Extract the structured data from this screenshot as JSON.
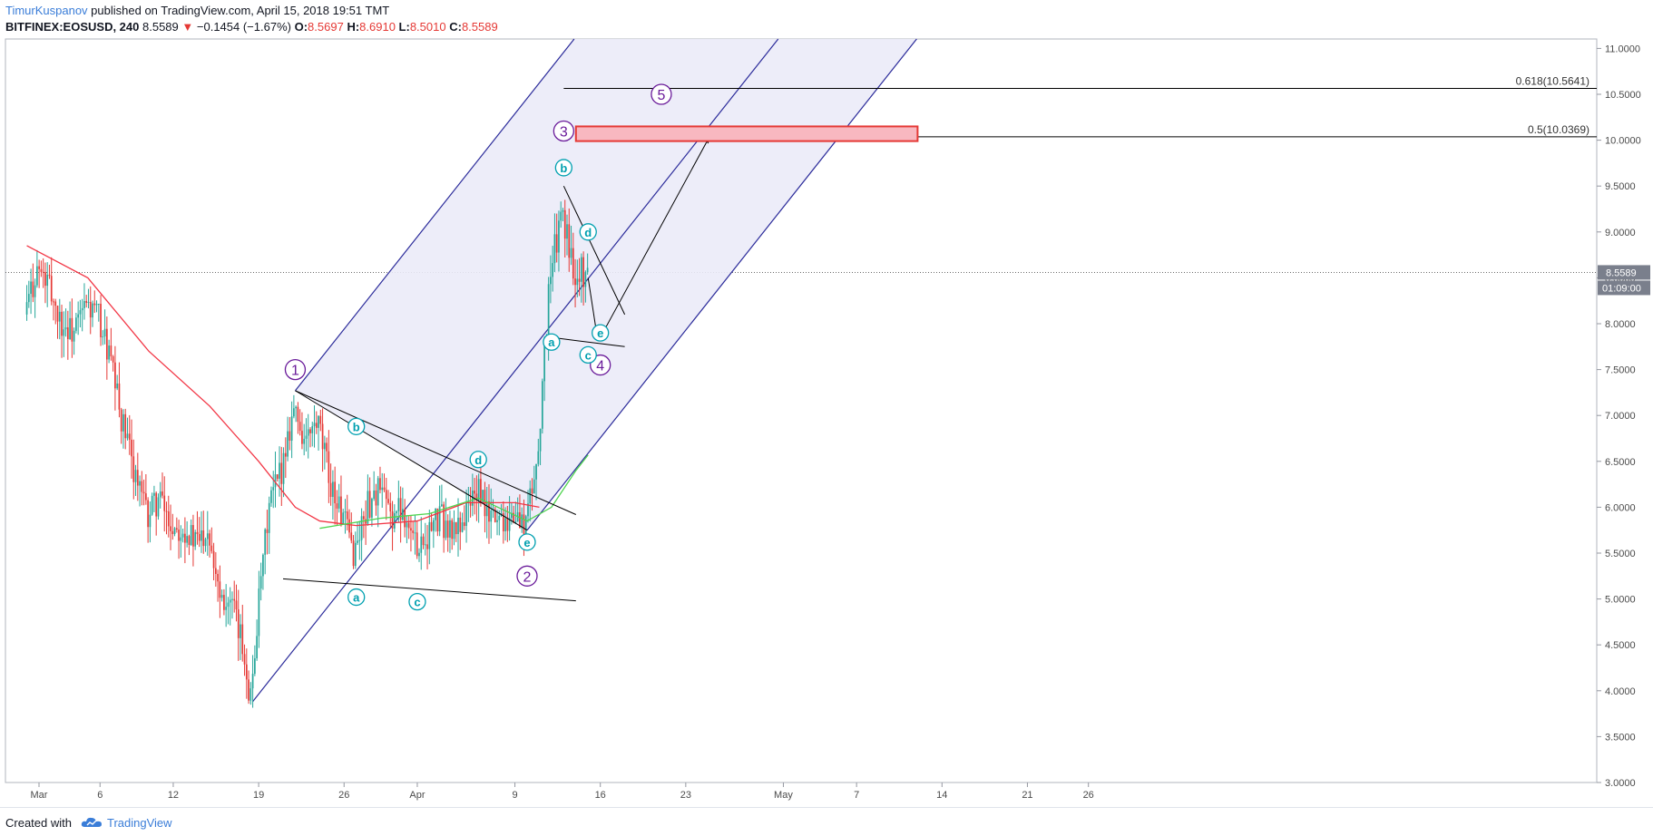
{
  "header": {
    "author": "TimurKuspanov",
    "published_text": " published on TradingView.com, April 15, 2018 19:51 TMT",
    "symbol": "BITFINEX:EOSUSD, 240",
    "last": "8.5589",
    "change": "−0.1454 (−1.67%)",
    "open_label": "O:",
    "open": "8.5697",
    "high_label": "H:",
    "high": "8.6910",
    "low_label": "L:",
    "low": "8.5010",
    "close_label": "C:",
    "close": "8.5589"
  },
  "footer": {
    "created_with": "Created with",
    "brand": "TradingView"
  },
  "price_tag": {
    "price": "8.5589",
    "countdown": "01:09:00"
  },
  "fib_levels": [
    {
      "label": "0.618(10.5641)",
      "value": 10.5641
    },
    {
      "label": "0.5(10.0369)",
      "value": 10.0369
    }
  ],
  "colors": {
    "up": "#26a69a",
    "down": "#e53935",
    "ma_red": "#f23645",
    "ma_green": "#4fd44f",
    "channel": "#2a2a9a",
    "channel_fill": "#ebebf8",
    "wave_purple": "#6a1b9a",
    "wave_teal": "#00a0b0",
    "target_box": "#f8b8c0"
  },
  "chart_data": {
    "type": "candlestick",
    "timeframe": "240",
    "ylim": [
      3.0,
      11.0
    ],
    "y_ticks": [
      "3.0000",
      "3.5000",
      "4.0000",
      "4.5000",
      "5.0000",
      "5.5000",
      "6.0000",
      "6.5000",
      "7.0000",
      "7.5000",
      "8.0000",
      "8.5000",
      "9.0000",
      "9.5000",
      "10.0000",
      "10.5000",
      "11.0000"
    ],
    "x_ticks": [
      {
        "label": "Mar",
        "date": "2018-03-01"
      },
      {
        "label": "6",
        "date": "2018-03-06"
      },
      {
        "label": "12",
        "date": "2018-03-12"
      },
      {
        "label": "19",
        "date": "2018-03-19"
      },
      {
        "label": "26",
        "date": "2018-03-26"
      },
      {
        "label": "Apr",
        "date": "2018-04-01"
      },
      {
        "label": "9",
        "date": "2018-04-09"
      },
      {
        "label": "16",
        "date": "2018-04-16"
      },
      {
        "label": "23",
        "date": "2018-04-23"
      },
      {
        "label": "May",
        "date": "2018-05-01"
      },
      {
        "label": "7",
        "date": "2018-05-07"
      },
      {
        "label": "14",
        "date": "2018-05-14"
      },
      {
        "label": "21",
        "date": "2018-05-21"
      },
      {
        "label": "26",
        "date": "2018-05-26"
      }
    ],
    "price_path": [
      {
        "x": "2018-02-28",
        "y": 8.1
      },
      {
        "x": "2018-03-01",
        "y": 8.6
      },
      {
        "x": "2018-03-02",
        "y": 8.4
      },
      {
        "x": "2018-03-03",
        "y": 8.0
      },
      {
        "x": "2018-03-04",
        "y": 7.9
      },
      {
        "x": "2018-03-05",
        "y": 8.2
      },
      {
        "x": "2018-03-06",
        "y": 8.1
      },
      {
        "x": "2018-03-07",
        "y": 7.6
      },
      {
        "x": "2018-03-08",
        "y": 6.9
      },
      {
        "x": "2018-03-09",
        "y": 6.4
      },
      {
        "x": "2018-03-10",
        "y": 5.9
      },
      {
        "x": "2018-03-11",
        "y": 6.1
      },
      {
        "x": "2018-03-12",
        "y": 5.8
      },
      {
        "x": "2018-03-13",
        "y": 5.8
      },
      {
        "x": "2018-03-14",
        "y": 5.6
      },
      {
        "x": "2018-03-15",
        "y": 5.8
      },
      {
        "x": "2018-03-16",
        "y": 5.1
      },
      {
        "x": "2018-03-17",
        "y": 4.9
      },
      {
        "x": "2018-03-18",
        "y": 4.4
      },
      {
        "x": "2018-03-18T12:00",
        "y": 3.9
      },
      {
        "x": "2018-03-19",
        "y": 4.7
      },
      {
        "x": "2018-03-20",
        "y": 6.0
      },
      {
        "x": "2018-03-21",
        "y": 6.4
      },
      {
        "x": "2018-03-22",
        "y": 7.1
      },
      {
        "x": "2018-03-23",
        "y": 6.7
      },
      {
        "x": "2018-03-24",
        "y": 6.9
      },
      {
        "x": "2018-03-25",
        "y": 6.3
      },
      {
        "x": "2018-03-26",
        "y": 5.9
      },
      {
        "x": "2018-03-27",
        "y": 5.5
      },
      {
        "x": "2018-03-28",
        "y": 6.0
      },
      {
        "x": "2018-03-29",
        "y": 6.2
      },
      {
        "x": "2018-03-30",
        "y": 5.9
      },
      {
        "x": "2018-03-31",
        "y": 6.0
      },
      {
        "x": "2018-04-01",
        "y": 5.6
      },
      {
        "x": "2018-04-02",
        "y": 5.7
      },
      {
        "x": "2018-04-03",
        "y": 5.9
      },
      {
        "x": "2018-04-04",
        "y": 5.7
      },
      {
        "x": "2018-04-05",
        "y": 5.9
      },
      {
        "x": "2018-04-06",
        "y": 6.2
      },
      {
        "x": "2018-04-07",
        "y": 5.9
      },
      {
        "x": "2018-04-08",
        "y": 5.9
      },
      {
        "x": "2018-04-09",
        "y": 5.9
      },
      {
        "x": "2018-04-10",
        "y": 5.8
      },
      {
        "x": "2018-04-11",
        "y": 6.5
      },
      {
        "x": "2018-04-12",
        "y": 8.5
      },
      {
        "x": "2018-04-13",
        "y": 9.2
      },
      {
        "x": "2018-04-14",
        "y": 8.6
      },
      {
        "x": "2018-04-15",
        "y": 8.5589
      }
    ],
    "ma_red": [
      {
        "x": "2018-02-28",
        "y": 8.85
      },
      {
        "x": "2018-03-05",
        "y": 8.5
      },
      {
        "x": "2018-03-10",
        "y": 7.7
      },
      {
        "x": "2018-03-15",
        "y": 7.1
      },
      {
        "x": "2018-03-19",
        "y": 6.5
      },
      {
        "x": "2018-03-22",
        "y": 6.0
      },
      {
        "x": "2018-03-24",
        "y": 5.85
      },
      {
        "x": "2018-03-27",
        "y": 5.8
      },
      {
        "x": "2018-04-01",
        "y": 5.85
      },
      {
        "x": "2018-04-05",
        "y": 6.05
      },
      {
        "x": "2018-04-09",
        "y": 6.05
      },
      {
        "x": "2018-04-11",
        "y": 6.0
      }
    ],
    "ma_green": [
      {
        "x": "2018-03-24",
        "y": 5.77
      },
      {
        "x": "2018-03-29",
        "y": 5.88
      },
      {
        "x": "2018-04-02",
        "y": 5.93
      },
      {
        "x": "2018-04-06",
        "y": 6.1
      },
      {
        "x": "2018-04-10",
        "y": 5.85
      },
      {
        "x": "2018-04-12",
        "y": 6.0
      },
      {
        "x": "2018-04-14",
        "y": 6.4
      },
      {
        "x": "2018-04-15",
        "y": 6.57
      }
    ],
    "wave_labels": [
      {
        "text": "1",
        "x": "2018-03-22",
        "y": 7.5,
        "style": "primary"
      },
      {
        "text": "2",
        "x": "2018-04-10",
        "y": 5.25,
        "style": "primary"
      },
      {
        "text": "3",
        "x": "2018-04-13",
        "y": 10.1,
        "style": "primary"
      },
      {
        "text": "4",
        "x": "2018-04-16",
        "y": 7.55,
        "style": "primary"
      },
      {
        "text": "5",
        "x": "2018-04-21",
        "y": 10.5,
        "style": "primary"
      },
      {
        "text": "a",
        "x": "2018-03-27",
        "y": 5.02,
        "style": "minor"
      },
      {
        "text": "b",
        "x": "2018-03-27",
        "y": 6.88,
        "style": "minor"
      },
      {
        "text": "c",
        "x": "2018-04-01",
        "y": 4.97,
        "style": "minor"
      },
      {
        "text": "d",
        "x": "2018-04-06",
        "y": 6.52,
        "style": "minor"
      },
      {
        "text": "e",
        "x": "2018-04-10",
        "y": 5.62,
        "style": "minor"
      },
      {
        "text": "a",
        "x": "2018-04-12",
        "y": 7.8,
        "style": "minor"
      },
      {
        "text": "b",
        "x": "2018-04-13",
        "y": 9.7,
        "style": "minor"
      },
      {
        "text": "c",
        "x": "2018-04-15",
        "y": 7.66,
        "style": "minor"
      },
      {
        "text": "d",
        "x": "2018-04-15",
        "y": 9.0,
        "style": "minor"
      },
      {
        "text": "e",
        "x": "2018-04-16",
        "y": 7.9,
        "style": "minor"
      }
    ]
  }
}
